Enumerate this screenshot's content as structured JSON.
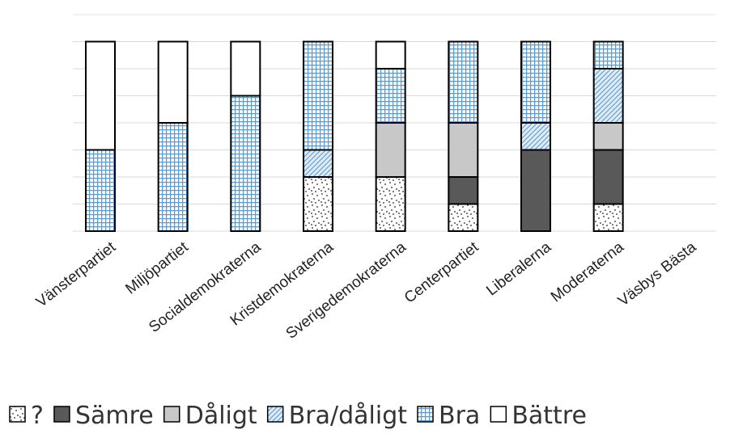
{
  "chart_data": {
    "type": "bar",
    "stacked": true,
    "title": "",
    "xlabel": "",
    "ylabel": "",
    "ylim": [
      0,
      7
    ],
    "grid": true,
    "legend_position": "bottom",
    "categories": [
      "Vänsterpartiet",
      "Miljöpartiet",
      "Socialdemokraterna",
      "Kristdemokraterna",
      "Sverigedemokraterna",
      "Centerpartiet",
      "Liberalerna",
      "Moderaterna",
      "Väsbys Bästa"
    ],
    "series": [
      {
        "name": "?",
        "pattern": "dots",
        "color": "#ffffff",
        "values": [
          0,
          0,
          0,
          2,
          2,
          1,
          0,
          1,
          0
        ]
      },
      {
        "name": "Sämre",
        "pattern": "solid",
        "color": "#595959",
        "values": [
          0,
          0,
          0,
          0,
          0,
          1,
          3,
          2,
          0
        ]
      },
      {
        "name": "Dåligt",
        "pattern": "solid",
        "color": "#c8c8c8",
        "values": [
          0,
          0,
          0,
          0,
          2,
          2,
          0,
          1,
          0
        ]
      },
      {
        "name": "Bra/dåligt",
        "pattern": "diagonal",
        "color": "#a9cde8",
        "values": [
          0,
          0,
          0,
          1,
          0,
          0,
          1,
          2,
          0
        ]
      },
      {
        "name": "Bra",
        "pattern": "grid",
        "color": "#6fa8dc",
        "values": [
          3,
          4,
          5,
          4,
          2,
          3,
          3,
          1,
          0
        ]
      },
      {
        "name": "Bättre",
        "pattern": "none",
        "color": "#ffffff",
        "values": [
          4,
          3,
          2,
          0,
          1,
          0,
          0,
          0,
          0
        ]
      }
    ]
  }
}
